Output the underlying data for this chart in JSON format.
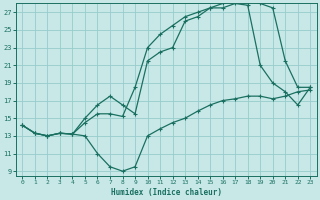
{
  "xlabel": "Humidex (Indice chaleur)",
  "bg_color": "#c8e8e8",
  "grid_color": "#98cccc",
  "line_color": "#1a7060",
  "xlim": [
    -0.5,
    23.5
  ],
  "ylim": [
    8.5,
    28.0
  ],
  "yticks": [
    9,
    11,
    13,
    15,
    17,
    19,
    21,
    23,
    25,
    27
  ],
  "xticks": [
    0,
    1,
    2,
    3,
    4,
    5,
    6,
    7,
    8,
    9,
    10,
    11,
    12,
    13,
    14,
    15,
    16,
    17,
    18,
    19,
    20,
    21,
    22,
    23
  ],
  "line1_x": [
    0,
    1,
    2,
    3,
    4,
    5,
    6,
    7,
    8,
    9,
    10,
    11,
    12,
    13,
    14,
    15,
    16,
    17,
    18,
    19,
    20,
    21,
    22,
    23
  ],
  "line1_y": [
    14.2,
    13.3,
    13.0,
    13.3,
    13.2,
    13.0,
    11.0,
    9.5,
    9.0,
    9.5,
    13.0,
    13.8,
    14.5,
    15.0,
    15.8,
    16.5,
    17.0,
    17.2,
    17.5,
    17.5,
    17.2,
    17.5,
    18.0,
    18.2
  ],
  "line2_x": [
    0,
    1,
    2,
    3,
    4,
    5,
    6,
    7,
    8,
    9,
    10,
    11,
    12,
    13,
    14,
    15,
    16,
    17,
    18,
    19,
    20,
    21,
    22,
    23
  ],
  "line2_y": [
    14.2,
    13.3,
    13.0,
    13.3,
    13.2,
    15.0,
    16.5,
    17.5,
    16.5,
    15.5,
    21.5,
    22.5,
    23.0,
    26.0,
    26.5,
    27.5,
    27.5,
    28.0,
    27.8,
    21.0,
    19.0,
    18.0,
    16.5,
    18.5
  ],
  "line3_x": [
    0,
    1,
    2,
    3,
    4,
    5,
    6,
    7,
    8,
    9,
    10,
    11,
    12,
    13,
    14,
    15,
    16,
    17,
    18,
    19,
    20,
    21,
    22,
    23
  ],
  "line3_y": [
    14.2,
    13.3,
    13.0,
    13.3,
    13.2,
    14.5,
    15.5,
    15.5,
    15.2,
    18.5,
    23.0,
    24.5,
    25.5,
    26.5,
    27.0,
    27.5,
    28.0,
    28.2,
    28.2,
    28.0,
    27.5,
    21.5,
    18.5,
    18.5
  ]
}
